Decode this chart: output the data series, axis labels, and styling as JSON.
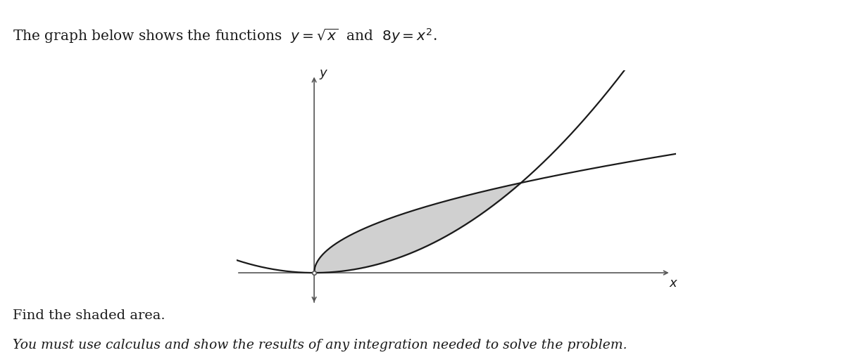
{
  "title_text": "The graph below shows the functions  $y = \\sqrt{x}$  and  $8y = x^2$.",
  "bottom_text1": "Find the shaded area.",
  "bottom_text2": "You must use calculus and show the results of any integration needed to solve the problem.",
  "x_min": -1.5,
  "x_max": 7.0,
  "y_min": -0.8,
  "y_max": 4.5,
  "shaded_color": "#d0d0d0",
  "shaded_alpha": 1.0,
  "curve_color": "#1a1a1a",
  "curve_linewidth": 1.6,
  "axis_color": "#555555",
  "bg_color": "#ffffff",
  "figsize": [
    12.0,
    5.06
  ],
  "dpi": 100
}
